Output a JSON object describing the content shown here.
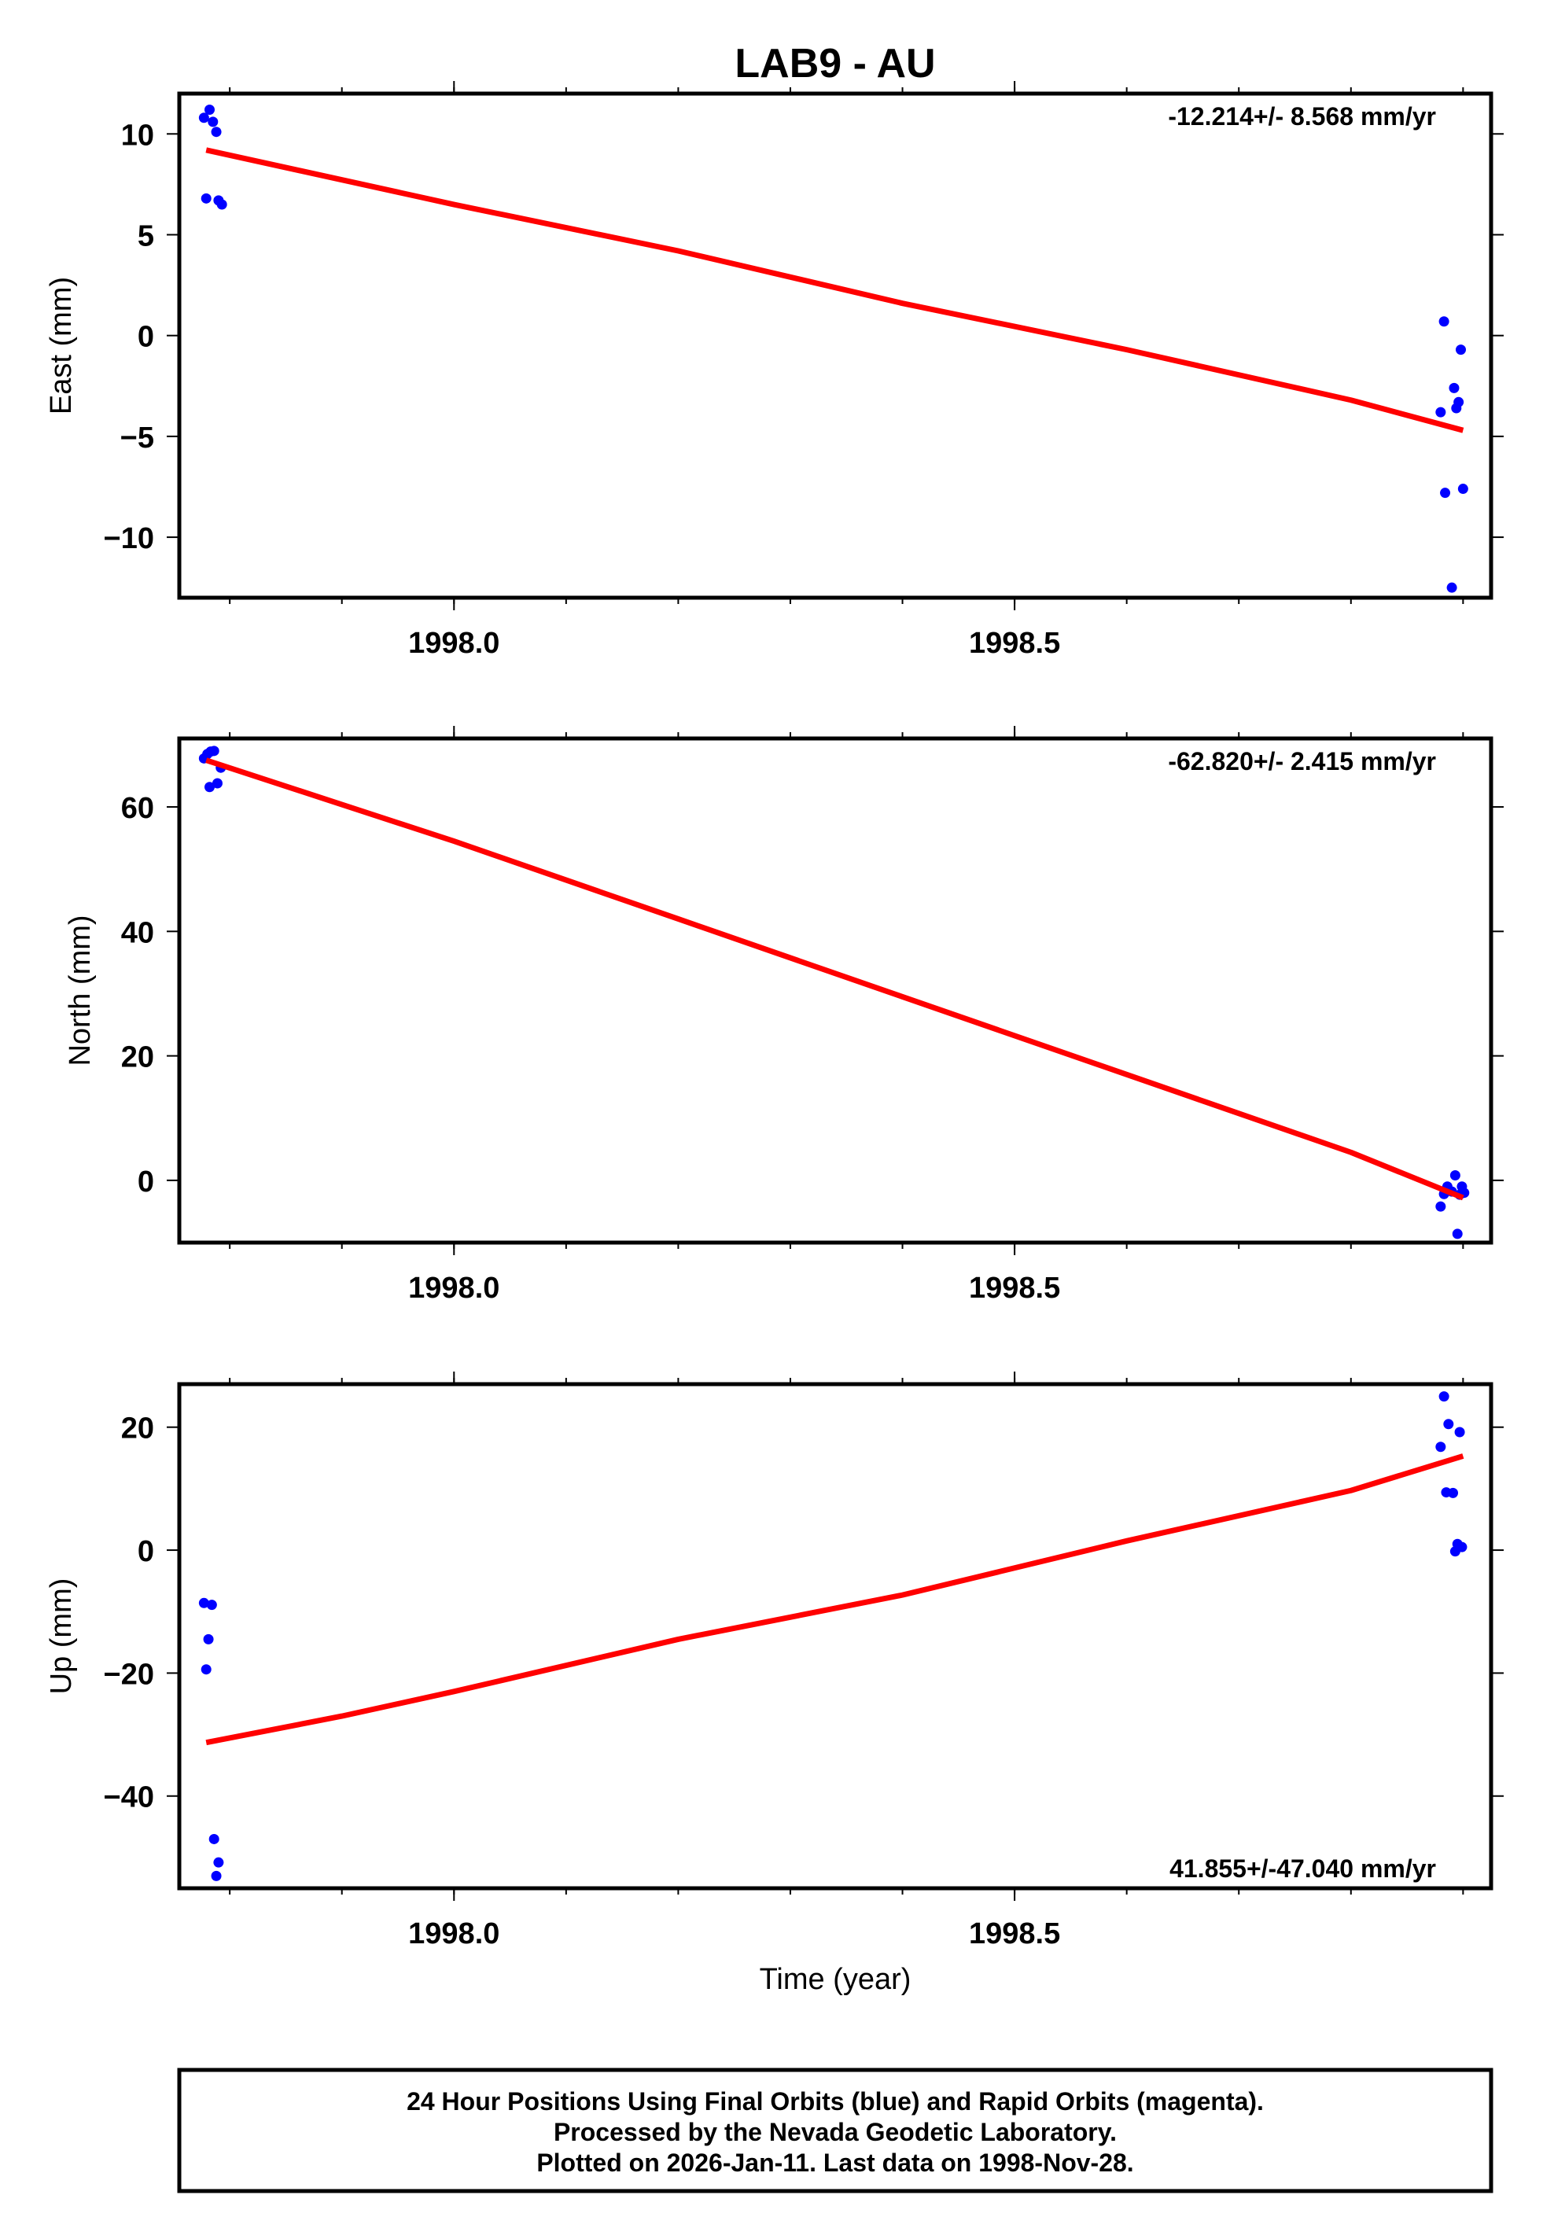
{
  "title": "LAB9 - AU",
  "chart_data": [
    {
      "type": "scatter",
      "ylabel": "East (mm)",
      "xlim": [
        1997.755,
        1998.925
      ],
      "ylim": [
        -13,
        12
      ],
      "yticks": [
        "10",
        "5",
        "0",
        "−5",
        "−10"
      ],
      "ytick_values": [
        10,
        5,
        0,
        -5,
        -10
      ],
      "xticks": [
        "1998.0",
        "1998.5"
      ],
      "xtick_values": [
        1998.0,
        1998.5
      ],
      "rate_text": "-12.214+/- 8.568 mm/yr",
      "rate_position": "top-right",
      "series": [
        {
          "type": "scatter",
          "color": "#0000ff",
          "x": [
            1997.777,
            1997.782,
            1997.785,
            1997.788,
            1997.779,
            1997.79,
            1997.793,
            1998.88,
            1998.883,
            1998.884,
            1998.89,
            1998.892,
            1998.894,
            1998.896,
            1998.898,
            1998.9
          ],
          "y": [
            10.8,
            11.2,
            10.6,
            10.1,
            6.8,
            6.7,
            6.5,
            -3.8,
            0.7,
            -7.8,
            -12.5,
            -2.6,
            -3.6,
            -3.3,
            -0.7,
            -7.6
          ]
        },
        {
          "type": "line",
          "color": "#ff0000",
          "x": [
            1997.779,
            1998.0,
            1998.2,
            1998.4,
            1998.6,
            1998.8,
            1998.9
          ],
          "y": [
            9.2,
            6.5,
            4.2,
            1.6,
            -0.7,
            -3.2,
            -4.7
          ]
        }
      ]
    },
    {
      "type": "scatter",
      "ylabel": "North (mm)",
      "xlim": [
        1997.755,
        1998.925
      ],
      "ylim": [
        -10,
        71
      ],
      "yticks": [
        "60",
        "40",
        "20",
        "0"
      ],
      "ytick_values": [
        60,
        40,
        20,
        0
      ],
      "xticks": [
        "1998.0",
        "1998.5"
      ],
      "xtick_values": [
        1998.0,
        1998.5
      ],
      "rate_text": "-62.820+/- 2.415 mm/yr",
      "rate_position": "top-right",
      "series": [
        {
          "type": "scatter",
          "color": "#0000ff",
          "x": [
            1997.777,
            1997.78,
            1997.783,
            1997.786,
            1997.789,
            1997.792,
            1997.782,
            1998.88,
            1998.883,
            1998.886,
            1998.89,
            1998.893,
            1998.895,
            1998.897,
            1998.899,
            1998.901
          ],
          "y": [
            67.8,
            68.5,
            68.9,
            69.0,
            63.8,
            66.3,
            63.2,
            -4.2,
            -2.2,
            -1.0,
            -1.8,
            0.8,
            -8.6,
            -2.3,
            -1.0,
            -2.0
          ]
        },
        {
          "type": "line",
          "color": "#ff0000",
          "x": [
            1997.779,
            1998.0,
            1998.2,
            1998.4,
            1998.6,
            1998.8,
            1998.9
          ],
          "y": [
            67.5,
            54.5,
            42.0,
            29.5,
            17.0,
            4.5,
            -2.8
          ]
        }
      ]
    },
    {
      "type": "scatter",
      "ylabel": "Up (mm)",
      "xlim": [
        1997.755,
        1998.925
      ],
      "ylim": [
        -55,
        27
      ],
      "yticks": [
        "20",
        "0",
        "−20",
        "−40"
      ],
      "ytick_values": [
        20,
        0,
        -20,
        -40
      ],
      "xticks": [
        "1998.0",
        "1998.5"
      ],
      "xtick_values": [
        1998.0,
        1998.5
      ],
      "xlabel": "Time (year)",
      "rate_text": "41.855+/-47.040 mm/yr",
      "rate_position": "bottom-right",
      "series": [
        {
          "type": "scatter",
          "color": "#0000ff",
          "x": [
            1997.777,
            1997.779,
            1997.781,
            1997.784,
            1997.786,
            1997.788,
            1997.79,
            1998.88,
            1998.883,
            1998.885,
            1998.887,
            1998.891,
            1998.893,
            1998.895,
            1998.897,
            1998.899
          ],
          "y": [
            -8.6,
            -19.4,
            -14.5,
            -8.9,
            -47.0,
            -53.0,
            -50.8,
            16.8,
            25.0,
            9.4,
            20.5,
            9.3,
            -0.2,
            1.0,
            19.2,
            0.5
          ]
        },
        {
          "type": "line",
          "color": "#ff0000",
          "x": [
            1997.779,
            1997.9,
            1998.0,
            1998.2,
            1998.4,
            1998.6,
            1998.8,
            1998.9
          ],
          "y": [
            -31.3,
            -27.0,
            -23.0,
            -14.5,
            -7.3,
            1.5,
            9.7,
            15.3
          ]
        }
      ]
    }
  ],
  "footer": {
    "line1": "24 Hour Positions Using Final Orbits (blue) and Rapid Orbits (magenta).",
    "line2": "Processed by the Nevada Geodetic Laboratory.",
    "line3": "Plotted on 2026-Jan-11. Last data on 1998-Nov-28."
  }
}
